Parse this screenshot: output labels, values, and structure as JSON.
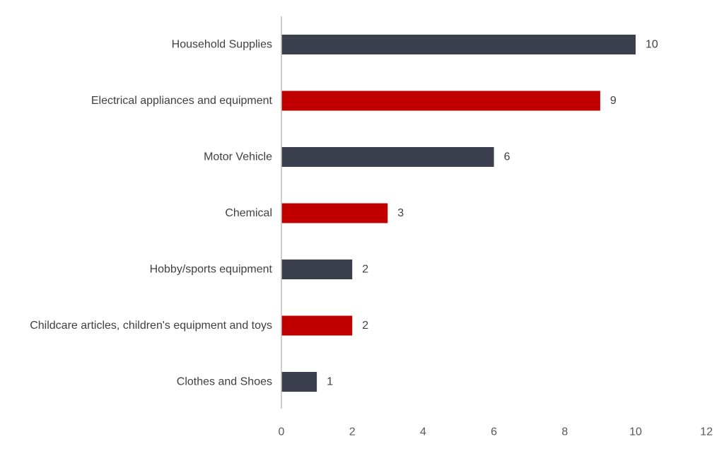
{
  "chart_data": {
    "type": "bar",
    "orientation": "horizontal",
    "categories": [
      "Household Supplies",
      "Electrical appliances and equipment",
      "Motor Vehicle",
      "Chemical",
      "Hobby/sports equipment",
      "Childcare articles, children's equipment and toys",
      "Clothes and Shoes"
    ],
    "values": [
      10,
      9,
      6,
      3,
      2,
      2,
      1
    ],
    "data_labels": [
      "10",
      "9",
      "6",
      "3",
      "2",
      "2",
      "1"
    ],
    "bar_colors": [
      "#3b3f4e",
      "#c00000",
      "#3b3f4e",
      "#c00000",
      "#3b3f4e",
      "#c00000",
      "#3b3f4e"
    ],
    "title": "",
    "xlabel": "",
    "ylabel": "",
    "xlim": [
      0,
      12
    ],
    "x_ticks": [
      "0",
      "2",
      "4",
      "6",
      "8",
      "10",
      "12"
    ],
    "grid": false,
    "legend": "none"
  }
}
